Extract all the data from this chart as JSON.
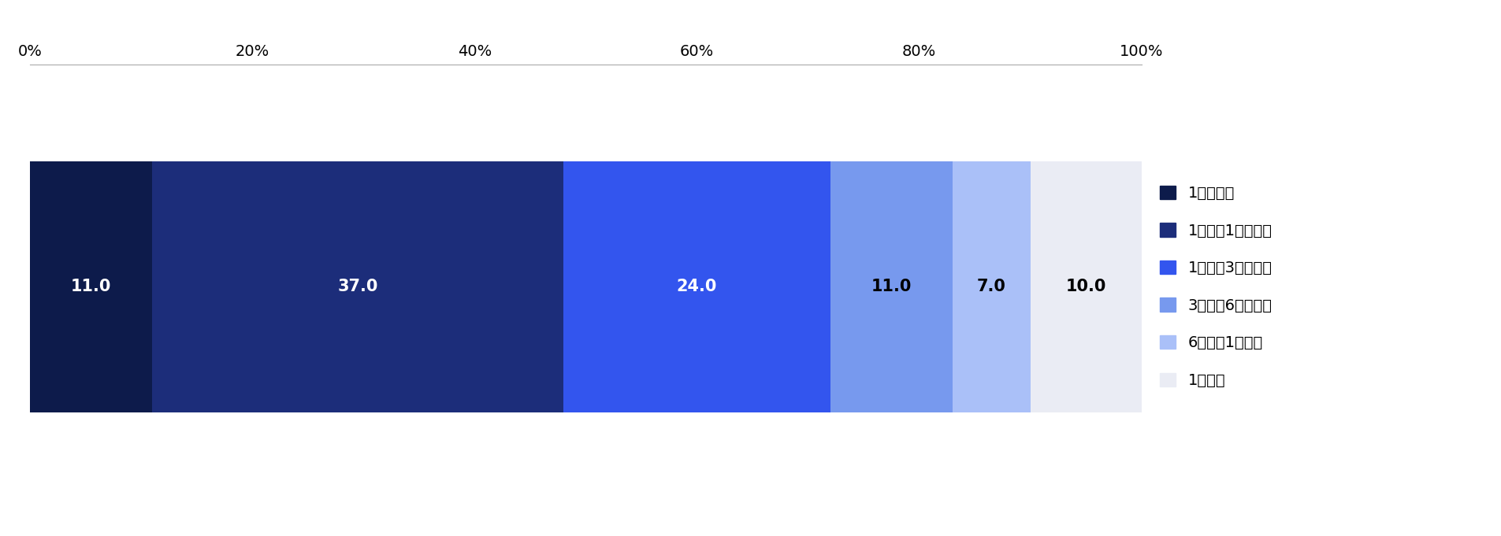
{
  "values": [
    11.0,
    37.0,
    24.0,
    11.0,
    7.0,
    10.0
  ],
  "colors": [
    "#0d1b4b",
    "#1c2d7a",
    "#3355ee",
    "#7799ee",
    "#aac0f8",
    "#eaecf4"
  ],
  "legend_labels": [
    "1週間未満",
    "1週間〜1か月未満",
    "1か月〜3か月未満",
    "3か月〜6か月未満",
    "6か月〜1年未満",
    "1年以上"
  ],
  "label_colors": [
    "white",
    "white",
    "white",
    "black",
    "black",
    "black"
  ],
  "background_color": "#ffffff",
  "fig_width": 19.06,
  "fig_height": 6.81,
  "xlim": [
    0,
    100
  ],
  "xticks": [
    0,
    20,
    40,
    60,
    80,
    100
  ],
  "xticklabels": [
    "0%",
    "20%",
    "40%",
    "60%",
    "80%",
    "100%"
  ],
  "label_fontsize": 15,
  "legend_fontsize": 14,
  "tick_fontsize": 14
}
